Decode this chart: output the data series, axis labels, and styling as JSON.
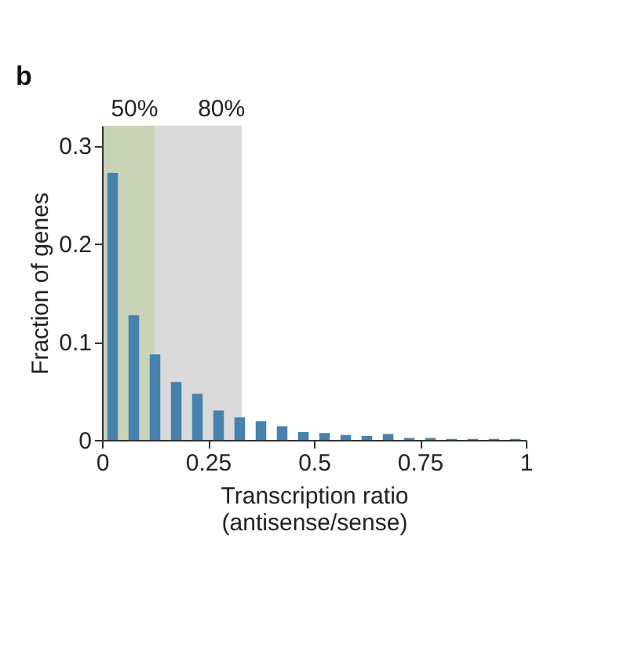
{
  "chart_data": {
    "type": "histogram",
    "xlabel": "Transcription ratio\n(antisense/sense)",
    "ylabel": "Fraction of genes",
    "bins": [
      0,
      0.05,
      0.1,
      0.15,
      0.2,
      0.25,
      0.3,
      0.35,
      0.4,
      0.45,
      0.5,
      0.55,
      0.6,
      0.65,
      0.7,
      0.75,
      0.8,
      0.85,
      0.9,
      0.95,
      1.0
    ],
    "values": [
      0.272,
      0.127,
      0.087,
      0.059,
      0.047,
      0.03,
      0.023,
      0.019,
      0.014,
      0.008,
      0.007,
      0.005,
      0.004,
      0.006,
      0.002,
      0.002,
      0.001,
      0.001,
      0.001,
      0.001
    ],
    "color": "#4682b0",
    "xlim": [
      0,
      1
    ],
    "xticks": [
      0,
      0.25,
      0.5,
      0.75,
      1
    ],
    "ylim": [
      0,
      0.32
    ],
    "yticks": [
      0,
      0.1,
      0.2,
      0.3
    ],
    "grid": false,
    "bands": [
      {
        "axis": "x",
        "from": 0,
        "to": 0.125,
        "label": "50%",
        "color": "#c9d4b6"
      },
      {
        "axis": "x",
        "from": 0.125,
        "to": 0.33,
        "label": "80%",
        "color": "#dadada"
      }
    ],
    "annotations": [
      "b"
    ]
  }
}
